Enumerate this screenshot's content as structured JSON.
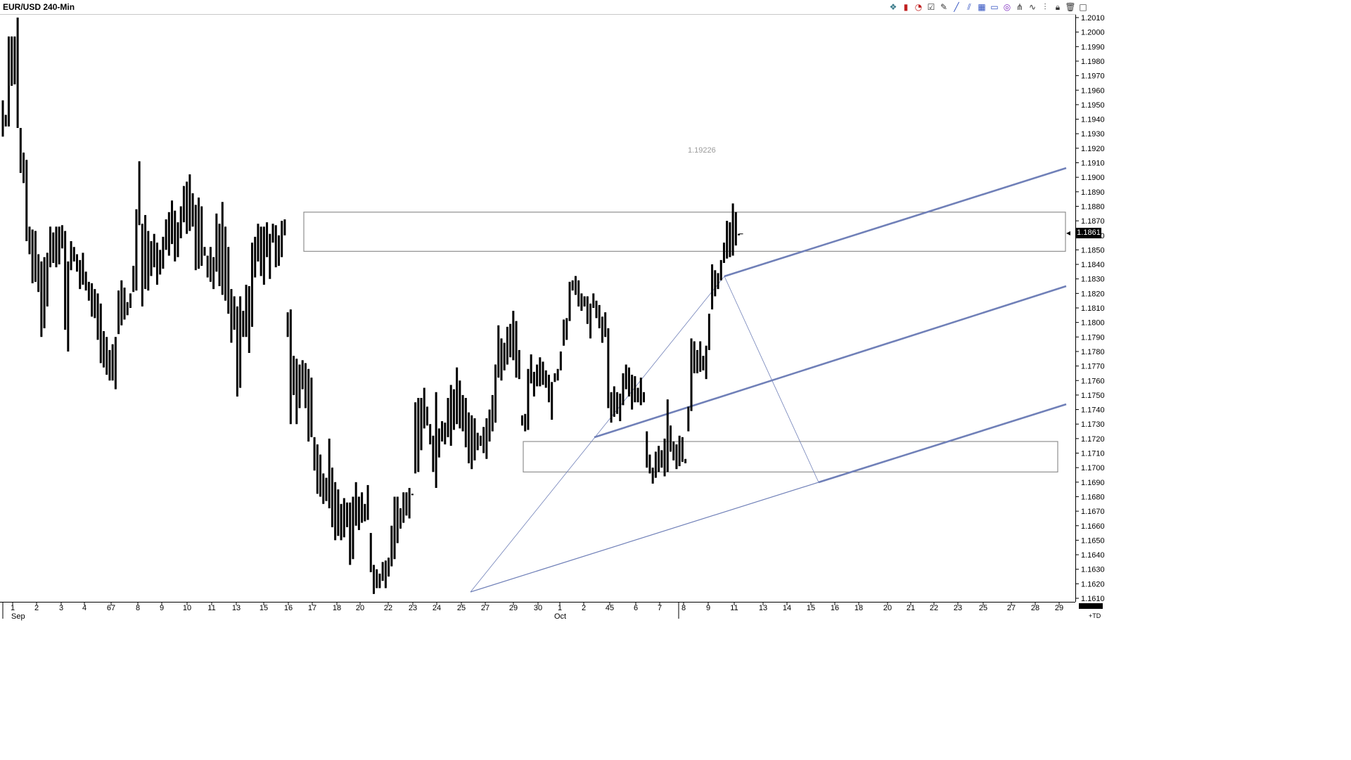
{
  "window": {
    "title": "EUR/USD 240-Min"
  },
  "toolbar": {
    "icons": [
      "data-icon",
      "candle-icon",
      "gauge-icon",
      "check-icon",
      "pencil-icon",
      "trendline-icon",
      "channel-icon",
      "grid-icon",
      "rectangle-icon",
      "circle-icon",
      "fork-icon",
      "wave-icon",
      "bar-icon",
      "lock-icon",
      "trash-icon",
      "square-icon"
    ]
  },
  "last_price": "1.1861",
  "floating_label": "1.19226",
  "corner_label": "+TD",
  "colors": {
    "bars": "#000000",
    "channel": "#7080b8",
    "box": "#909090"
  },
  "chart_data": {
    "type": "ohlc",
    "symbol": "EUR/USD",
    "interval": "240-Min",
    "ylim": [
      1.1607,
      1.2012
    ],
    "yticks": [
      "1.2010",
      "1.2000",
      "1.1990",
      "1.1980",
      "1.1970",
      "1.1960",
      "1.1950",
      "1.1940",
      "1.1930",
      "1.1920",
      "1.1910",
      "1.1900",
      "1.1890",
      "1.1880",
      "1.1870",
      "1.1860",
      "1.1850",
      "1.1840",
      "1.1830",
      "1.1820",
      "1.1810",
      "1.1800",
      "1.1790",
      "1.1780",
      "1.1770",
      "1.1760",
      "1.1750",
      "1.1740",
      "1.1730",
      "1.1720",
      "1.1710",
      "1.1700",
      "1.1690",
      "1.1680",
      "1.1670",
      "1.1660",
      "1.1650",
      "1.1640",
      "1.1630",
      "1.1620",
      "1.1610"
    ],
    "xticks": [
      "1",
      "2",
      "3",
      "4",
      "67",
      "8",
      "9",
      "10",
      "11",
      "13",
      "15",
      "16",
      "17",
      "18",
      "20",
      "22",
      "23",
      "24",
      "25",
      "27",
      "29",
      "30",
      "1",
      "2",
      "45",
      "6",
      "7",
      "8",
      "9",
      "11",
      "13",
      "14",
      "15",
      "16",
      "18",
      "20",
      "21",
      "22",
      "23",
      "25",
      "27",
      "28",
      "29"
    ],
    "month_labels": [
      "Sep",
      "Oct"
    ],
    "last": 1.1861,
    "bars": [
      {
        "h": 1.1953,
        "l": 1.1928
      },
      {
        "h": 1.1943,
        "l": 1.1935
      },
      {
        "h": 1.1997,
        "l": 1.1935
      },
      {
        "h": 1.1997,
        "l": 1.1963
      },
      {
        "h": 1.1997,
        "l": 1.1964
      },
      {
        "h": 1.201,
        "l": 1.1934
      },
      {
        "h": 1.1934,
        "l": 1.1903
      },
      {
        "h": 1.1917,
        "l": 1.1896
      },
      {
        "h": 1.1912,
        "l": 1.1856
      },
      {
        "h": 1.1866,
        "l": 1.1847
      },
      {
        "h": 1.1864,
        "l": 1.1827
      },
      {
        "h": 1.1863,
        "l": 1.1828
      },
      {
        "h": 1.1847,
        "l": 1.1821
      },
      {
        "h": 1.1842,
        "l": 1.179
      },
      {
        "h": 1.1845,
        "l": 1.1796
      },
      {
        "h": 1.1848,
        "l": 1.1811
      },
      {
        "h": 1.1866,
        "l": 1.1838
      },
      {
        "h": 1.1862,
        "l": 1.1841
      },
      {
        "h": 1.1866,
        "l": 1.1838
      },
      {
        "h": 1.1866,
        "l": 1.184
      },
      {
        "h": 1.1867,
        "l": 1.1851
      },
      {
        "h": 1.1863,
        "l": 1.1795
      },
      {
        "h": 1.1842,
        "l": 1.178
      },
      {
        "h": 1.1856,
        "l": 1.1836
      },
      {
        "h": 1.1852,
        "l": 1.1842
      },
      {
        "h": 1.1847,
        "l": 1.1835
      },
      {
        "h": 1.1843,
        "l": 1.1823
      },
      {
        "h": 1.1848,
        "l": 1.1826
      },
      {
        "h": 1.1835,
        "l": 1.1822
      },
      {
        "h": 1.1828,
        "l": 1.1815
      },
      {
        "h": 1.1827,
        "l": 1.1804
      },
      {
        "h": 1.1823,
        "l": 1.1803
      },
      {
        "h": 1.182,
        "l": 1.1788
      },
      {
        "h": 1.1813,
        "l": 1.1772
      },
      {
        "h": 1.1794,
        "l": 1.1769
      },
      {
        "h": 1.179,
        "l": 1.1764
      },
      {
        "h": 1.1781,
        "l": 1.176
      },
      {
        "h": 1.1785,
        "l": 1.176
      },
      {
        "h": 1.179,
        "l": 1.1754
      },
      {
        "h": 1.1822,
        "l": 1.1792
      },
      {
        "h": 1.1829,
        "l": 1.1798
      },
      {
        "h": 1.1824,
        "l": 1.1802
      },
      {
        "h": 1.1814,
        "l": 1.1805
      },
      {
        "h": 1.182,
        "l": 1.181
      },
      {
        "h": 1.1839,
        "l": 1.1821
      },
      {
        "h": 1.1878,
        "l": 1.1822
      },
      {
        "h": 1.1911,
        "l": 1.1867
      },
      {
        "h": 1.1868,
        "l": 1.1811
      },
      {
        "h": 1.1874,
        "l": 1.1823
      },
      {
        "h": 1.1863,
        "l": 1.1822
      },
      {
        "h": 1.1856,
        "l": 1.1832
      },
      {
        "h": 1.1861,
        "l": 1.1838
      },
      {
        "h": 1.1855,
        "l": 1.1826
      },
      {
        "h": 1.185,
        "l": 1.1833
      },
      {
        "h": 1.1859,
        "l": 1.1837
      },
      {
        "h": 1.1871,
        "l": 1.185
      },
      {
        "h": 1.1876,
        "l": 1.1846
      },
      {
        "h": 1.1884,
        "l": 1.1854
      },
      {
        "h": 1.1877,
        "l": 1.1842
      },
      {
        "h": 1.1869,
        "l": 1.1845
      },
      {
        "h": 1.188,
        "l": 1.1858
      },
      {
        "h": 1.1894,
        "l": 1.1869
      },
      {
        "h": 1.1897,
        "l": 1.1861
      },
      {
        "h": 1.1902,
        "l": 1.1863
      },
      {
        "h": 1.1889,
        "l": 1.1866
      },
      {
        "h": 1.1881,
        "l": 1.1836
      },
      {
        "h": 1.1886,
        "l": 1.1837
      },
      {
        "h": 1.188,
        "l": 1.1839
      },
      {
        "h": 1.1852,
        "l": 1.1846
      },
      {
        "h": 1.1846,
        "l": 1.1831
      },
      {
        "h": 1.1852,
        "l": 1.1828
      },
      {
        "h": 1.1845,
        "l": 1.1823
      },
      {
        "h": 1.1875,
        "l": 1.1835
      },
      {
        "h": 1.1868,
        "l": 1.1825
      },
      {
        "h": 1.1883,
        "l": 1.1819
      },
      {
        "h": 1.1866,
        "l": 1.1815
      },
      {
        "h": 1.1852,
        "l": 1.1806
      },
      {
        "h": 1.1823,
        "l": 1.1786
      },
      {
        "h": 1.1818,
        "l": 1.1795
      },
      {
        "h": 1.1811,
        "l": 1.1749
      },
      {
        "h": 1.1818,
        "l": 1.1755
      },
      {
        "h": 1.1808,
        "l": 1.179
      },
      {
        "h": 1.1826,
        "l": 1.179
      },
      {
        "h": 1.1825,
        "l": 1.1779
      },
      {
        "h": 1.1855,
        "l": 1.1797
      },
      {
        "h": 1.1859,
        "l": 1.1831
      },
      {
        "h": 1.1868,
        "l": 1.1842
      },
      {
        "h": 1.1866,
        "l": 1.1832
      },
      {
        "h": 1.1866,
        "l": 1.1826
      },
      {
        "h": 1.1869,
        "l": 1.1845
      },
      {
        "h": 1.1861,
        "l": 1.183
      },
      {
        "h": 1.1868,
        "l": 1.1855
      },
      {
        "h": 1.1867,
        "l": 1.1838
      },
      {
        "h": 1.186,
        "l": 1.1839
      },
      {
        "h": 1.187,
        "l": 1.1845
      },
      {
        "h": 1.1871,
        "l": 1.186
      },
      {
        "h": 1.1807,
        "l": 1.179
      },
      {
        "h": 1.1809,
        "l": 1.173
      },
      {
        "h": 1.1777,
        "l": 1.175
      },
      {
        "h": 1.1775,
        "l": 1.173
      },
      {
        "h": 1.1771,
        "l": 1.1741
      },
      {
        "h": 1.1774,
        "l": 1.1754
      },
      {
        "h": 1.1772,
        "l": 1.1741
      },
      {
        "h": 1.1768,
        "l": 1.1718
      },
      {
        "h": 1.1762,
        "l": 1.1721
      },
      {
        "h": 1.1721,
        "l": 1.1698
      },
      {
        "h": 1.1716,
        "l": 1.1682
      },
      {
        "h": 1.1709,
        "l": 1.168
      },
      {
        "h": 1.1696,
        "l": 1.1675
      },
      {
        "h": 1.1693,
        "l": 1.1677
      },
      {
        "h": 1.172,
        "l": 1.1672
      },
      {
        "h": 1.17,
        "l": 1.1659
      },
      {
        "h": 1.169,
        "l": 1.165
      },
      {
        "h": 1.1685,
        "l": 1.1653
      },
      {
        "h": 1.1675,
        "l": 1.165
      },
      {
        "h": 1.1679,
        "l": 1.1652
      },
      {
        "h": 1.1676,
        "l": 1.1659
      },
      {
        "h": 1.1676,
        "l": 1.1633
      },
      {
        "h": 1.168,
        "l": 1.1637
      },
      {
        "h": 1.169,
        "l": 1.166
      },
      {
        "h": 1.168,
        "l": 1.1657
      },
      {
        "h": 1.1683,
        "l": 1.1662
      },
      {
        "h": 1.1675,
        "l": 1.1663
      },
      {
        "h": 1.1688,
        "l": 1.1664
      },
      {
        "h": 1.1655,
        "l": 1.1628
      },
      {
        "h": 1.1633,
        "l": 1.1613
      },
      {
        "h": 1.163,
        "l": 1.1617
      },
      {
        "h": 1.1627,
        "l": 1.1617
      },
      {
        "h": 1.1635,
        "l": 1.1622
      },
      {
        "h": 1.1636,
        "l": 1.1617
      },
      {
        "h": 1.1638,
        "l": 1.1625
      },
      {
        "h": 1.166,
        "l": 1.1632
      },
      {
        "h": 1.168,
        "l": 1.1637
      },
      {
        "h": 1.168,
        "l": 1.1648
      },
      {
        "h": 1.1672,
        "l": 1.1658
      },
      {
        "h": 1.1683,
        "l": 1.1662
      },
      {
        "h": 1.1683,
        "l": 1.1667
      },
      {
        "h": 1.1686,
        "l": 1.1665
      },
      {
        "h": 1.1682,
        "l": 1.1682
      },
      {
        "h": 1.1745,
        "l": 1.1696
      },
      {
        "h": 1.1748,
        "l": 1.1697
      },
      {
        "h": 1.1748,
        "l": 1.1712
      },
      {
        "h": 1.1755,
        "l": 1.1727
      },
      {
        "h": 1.1742,
        "l": 1.1729
      },
      {
        "h": 1.173,
        "l": 1.1716
      },
      {
        "h": 1.1722,
        "l": 1.1697
      },
      {
        "h": 1.1752,
        "l": 1.1686
      },
      {
        "h": 1.1727,
        "l": 1.1707
      },
      {
        "h": 1.1732,
        "l": 1.1718
      },
      {
        "h": 1.1731,
        "l": 1.1716
      },
      {
        "h": 1.1748,
        "l": 1.1721
      },
      {
        "h": 1.1757,
        "l": 1.1715
      },
      {
        "h": 1.1754,
        "l": 1.1726
      },
      {
        "h": 1.1769,
        "l": 1.173
      },
      {
        "h": 1.176,
        "l": 1.1727
      },
      {
        "h": 1.175,
        "l": 1.1725
      },
      {
        "h": 1.1748,
        "l": 1.1714
      },
      {
        "h": 1.1738,
        "l": 1.1703
      },
      {
        "h": 1.1736,
        "l": 1.1699
      },
      {
        "h": 1.1734,
        "l": 1.1705
      },
      {
        "h": 1.1724,
        "l": 1.1712
      },
      {
        "h": 1.1722,
        "l": 1.1715
      },
      {
        "h": 1.1728,
        "l": 1.171
      },
      {
        "h": 1.1734,
        "l": 1.1706
      },
      {
        "h": 1.174,
        "l": 1.1718
      },
      {
        "h": 1.175,
        "l": 1.1725
      },
      {
        "h": 1.1771,
        "l": 1.1731
      },
      {
        "h": 1.1798,
        "l": 1.1762
      },
      {
        "h": 1.1789,
        "l": 1.176
      },
      {
        "h": 1.1786,
        "l": 1.1767
      },
      {
        "h": 1.1797,
        "l": 1.1771
      },
      {
        "h": 1.1799,
        "l": 1.1776
      },
      {
        "h": 1.1808,
        "l": 1.1774
      },
      {
        "h": 1.1801,
        "l": 1.1762
      },
      {
        "h": 1.1781,
        "l": 1.1761
      },
      {
        "h": 1.1736,
        "l": 1.1729
      },
      {
        "h": 1.1737,
        "l": 1.1725
      },
      {
        "h": 1.1768,
        "l": 1.1726
      },
      {
        "h": 1.1778,
        "l": 1.1758
      },
      {
        "h": 1.1766,
        "l": 1.1749
      },
      {
        "h": 1.1771,
        "l": 1.1756
      },
      {
        "h": 1.1776,
        "l": 1.1756
      },
      {
        "h": 1.1773,
        "l": 1.1757
      },
      {
        "h": 1.1767,
        "l": 1.1755
      },
      {
        "h": 1.1764,
        "l": 1.1745
      },
      {
        "h": 1.1759,
        "l": 1.1733
      },
      {
        "h": 1.1765,
        "l": 1.1759
      },
      {
        "h": 1.1768,
        "l": 1.176
      },
      {
        "h": 1.178,
        "l": 1.1767
      },
      {
        "h": 1.1802,
        "l": 1.1784
      },
      {
        "h": 1.1803,
        "l": 1.1788
      },
      {
        "h": 1.1828,
        "l": 1.1801
      },
      {
        "h": 1.1829,
        "l": 1.1822
      },
      {
        "h": 1.1832,
        "l": 1.1819
      },
      {
        "h": 1.1829,
        "l": 1.1811
      },
      {
        "h": 1.182,
        "l": 1.1808
      },
      {
        "h": 1.1818,
        "l": 1.1811
      },
      {
        "h": 1.1818,
        "l": 1.1799
      },
      {
        "h": 1.1813,
        "l": 1.1789
      },
      {
        "h": 1.182,
        "l": 1.181
      },
      {
        "h": 1.1815,
        "l": 1.1803
      },
      {
        "h": 1.1812,
        "l": 1.1796
      },
      {
        "h": 1.1804,
        "l": 1.1786
      },
      {
        "h": 1.1807,
        "l": 1.179
      },
      {
        "h": 1.1796,
        "l": 1.1741
      },
      {
        "h": 1.1752,
        "l": 1.1731
      },
      {
        "h": 1.1756,
        "l": 1.1735
      },
      {
        "h": 1.1752,
        "l": 1.1737
      },
      {
        "h": 1.1751,
        "l": 1.1732
      },
      {
        "h": 1.1765,
        "l": 1.1743
      },
      {
        "h": 1.1771,
        "l": 1.1754
      },
      {
        "h": 1.1769,
        "l": 1.1749
      },
      {
        "h": 1.1764,
        "l": 1.174
      },
      {
        "h": 1.1763,
        "l": 1.1745
      },
      {
        "h": 1.1755,
        "l": 1.1745
      },
      {
        "h": 1.1762,
        "l": 1.1743
      },
      {
        "h": 1.1752,
        "l": 1.1745
      },
      {
        "h": 1.1725,
        "l": 1.17
      },
      {
        "h": 1.1709,
        "l": 1.1696
      },
      {
        "h": 1.17,
        "l": 1.1689
      },
      {
        "h": 1.1711,
        "l": 1.1693
      },
      {
        "h": 1.1715,
        "l": 1.1697
      },
      {
        "h": 1.1712,
        "l": 1.17
      },
      {
        "h": 1.172,
        "l": 1.1694
      },
      {
        "h": 1.1747,
        "l": 1.1697
      },
      {
        "h": 1.1729,
        "l": 1.1711
      },
      {
        "h": 1.1718,
        "l": 1.1705
      },
      {
        "h": 1.1716,
        "l": 1.1699
      },
      {
        "h": 1.1722,
        "l": 1.1701
      },
      {
        "h": 1.1721,
        "l": 1.1704
      },
      {
        "h": 1.1706,
        "l": 1.1703
      },
      {
        "h": 1.1742,
        "l": 1.1725
      },
      {
        "h": 1.1789,
        "l": 1.1739
      },
      {
        "h": 1.1787,
        "l": 1.1765
      },
      {
        "h": 1.1781,
        "l": 1.1765
      },
      {
        "h": 1.1787,
        "l": 1.1766
      },
      {
        "h": 1.1777,
        "l": 1.1767
      },
      {
        "h": 1.1784,
        "l": 1.1761
      },
      {
        "h": 1.1806,
        "l": 1.1781
      },
      {
        "h": 1.184,
        "l": 1.1809
      },
      {
        "h": 1.1836,
        "l": 1.1818
      },
      {
        "h": 1.1834,
        "l": 1.1823
      },
      {
        "h": 1.1843,
        "l": 1.1829
      },
      {
        "h": 1.1855,
        "l": 1.1841
      },
      {
        "h": 1.187,
        "l": 1.1844
      },
      {
        "h": 1.1869,
        "l": 1.1845
      },
      {
        "h": 1.1882,
        "l": 1.1846
      },
      {
        "h": 1.1876,
        "l": 1.1853
      },
      {
        "h": 1.1861,
        "l": 1.1861
      }
    ],
    "channel": {
      "anchor_low": [
        1.1617,
        0
      ],
      "anchor_high": [
        1.1832,
        0
      ],
      "slope_per_px": 7e-06
    },
    "boxes": [
      {
        "top": 1.1876,
        "bottom": 1.1849
      },
      {
        "top": 1.1718,
        "bottom": 1.1697
      }
    ]
  }
}
